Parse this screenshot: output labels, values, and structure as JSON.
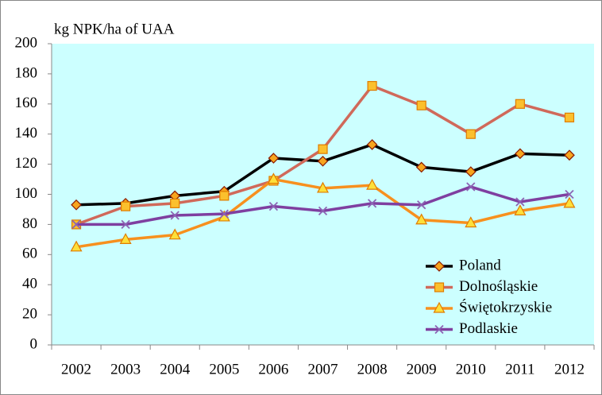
{
  "chart_data": {
    "type": "line",
    "y_label": "kg NPK/ha of UAA",
    "categories": [
      "2002",
      "2003",
      "2004",
      "2005",
      "2006",
      "2007",
      "2008",
      "2009",
      "2010",
      "2011",
      "2012"
    ],
    "series": [
      {
        "name": "Poland",
        "color": "#000000",
        "marker": "diamond",
        "marker_color": "#f7a51e",
        "values": [
          93,
          94,
          99,
          102,
          124,
          122,
          133,
          118,
          115,
          127,
          126
        ]
      },
      {
        "name": "Dolnośląskie",
        "color": "#d0695a",
        "marker": "square",
        "marker_color": "#fbc02d",
        "values": [
          80,
          92,
          94,
          99,
          109,
          130,
          172,
          159,
          140,
          160,
          151
        ]
      },
      {
        "name": "Świętokrzyskie",
        "color": "#f7901e",
        "marker": "triangle",
        "marker_color": "#fde03a",
        "values": [
          65,
          70,
          73,
          85,
          110,
          104,
          106,
          83,
          81,
          89,
          94
        ]
      },
      {
        "name": "Podlaskie",
        "color": "#7f3fa0",
        "marker": "x",
        "marker_color": "#8c64b4",
        "values": [
          80,
          80,
          86,
          87,
          92,
          89,
          94,
          93,
          105,
          95,
          100
        ]
      }
    ],
    "ylim": [
      0,
      200
    ],
    "yticks": [
      0,
      20,
      40,
      60,
      80,
      100,
      120,
      140,
      160,
      180,
      200
    ],
    "grid": false,
    "legend": "lower right",
    "plot_background": "#ccffff"
  }
}
